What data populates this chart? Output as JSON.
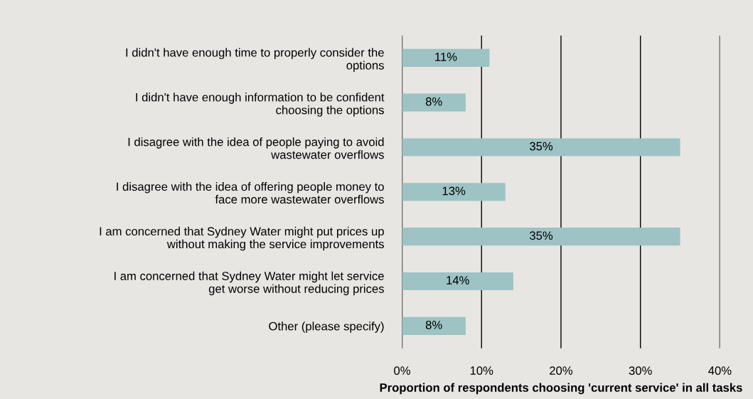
{
  "chart_data": {
    "type": "bar",
    "orientation": "horizontal",
    "xlabel": "Proportion of respondents choosing 'current service' in all tasks",
    "categories": [
      "I didn't have enough time to properly consider the\noptions",
      "I didn't have enough information to be confident\nchoosing the options",
      "I disagree with the idea of people paying to avoid\nwastewater overflows",
      "I disagree with the idea of offering people money to\nface more wastewater overflows",
      "I am concerned that Sydney Water might put prices up\nwithout making the service improvements",
      "I am concerned that Sydney Water might let service\nget worse without reducing prices",
      "Other (please specify)"
    ],
    "values": [
      11,
      8,
      35,
      13,
      35,
      14,
      8
    ],
    "value_labels": [
      "11%",
      "8%",
      "35%",
      "13%",
      "35%",
      "14%",
      "8%"
    ],
    "color": "#9dc3c4",
    "grid": "x",
    "xlim": [
      0,
      40
    ],
    "xticks": [
      {
        "value": 0,
        "label": "0%"
      },
      {
        "value": 10,
        "label": "10%"
      },
      {
        "value": 20,
        "label": "20%"
      },
      {
        "value": 30,
        "label": "30%"
      },
      {
        "value": 40,
        "label": "40%"
      }
    ]
  }
}
